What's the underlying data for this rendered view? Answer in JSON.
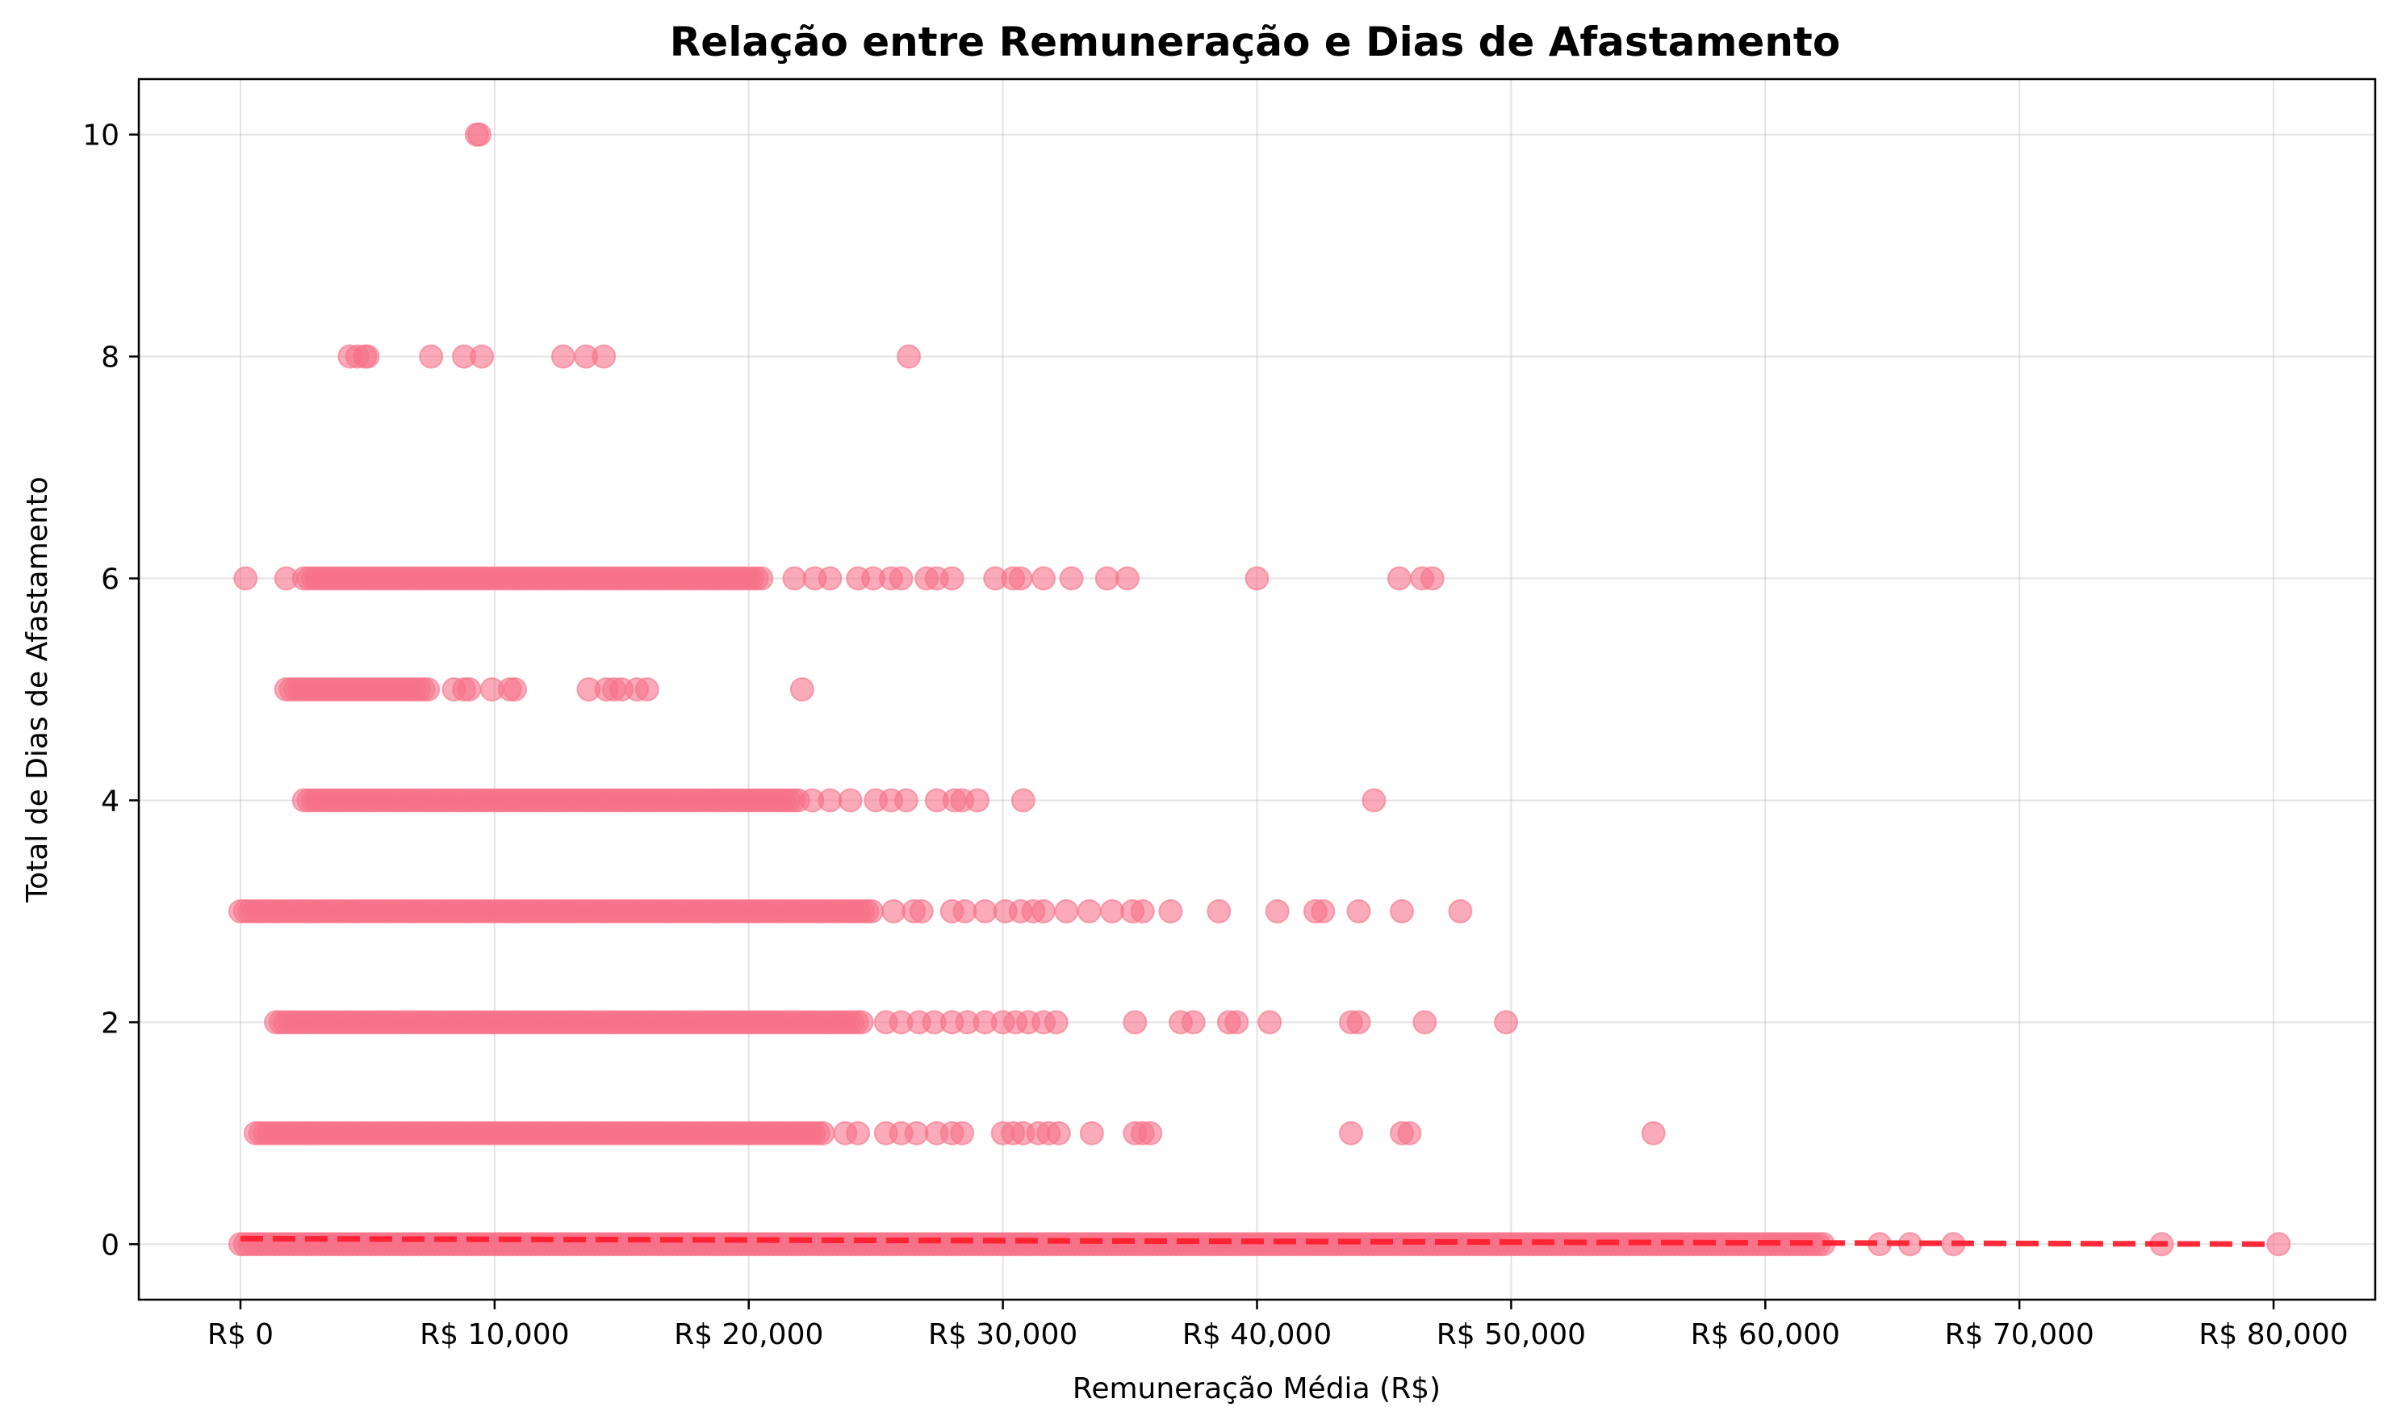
{
  "chart_data": {
    "type": "scatter",
    "title": "Relação entre Remuneração e Dias de Afastamento",
    "xlabel": "Remuneração Média (R$)",
    "ylabel": "Total de Dias de Afastamento",
    "xlim": [
      -4000,
      84000
    ],
    "ylim": [
      -0.5,
      10.5
    ],
    "grid": true,
    "x_ticks": [
      0,
      10000,
      20000,
      30000,
      40000,
      50000,
      60000,
      70000,
      80000
    ],
    "x_tick_labels": [
      "R$ 0",
      "R$ 10,000",
      "R$ 20,000",
      "R$ 30,000",
      "R$ 40,000",
      "R$ 50,000",
      "R$ 60,000",
      "R$ 70,000",
      "R$ 80,000"
    ],
    "y_ticks": [
      0,
      2,
      4,
      6,
      8,
      10
    ],
    "y_tick_labels": [
      "0",
      "2",
      "4",
      "6",
      "8",
      "10"
    ],
    "point_color": "#f77189",
    "trend_color": "#ff1f2e",
    "trend_line": {
      "x": [
        0,
        80000
      ],
      "y": [
        0.05,
        0.0
      ]
    },
    "dense_ranges": [
      {
        "y": 0,
        "x_start": 0,
        "x_end": 62300
      },
      {
        "y": 1,
        "x_start": 600,
        "x_end": 23000
      },
      {
        "y": 2,
        "x_start": 1400,
        "x_end": 24500
      },
      {
        "y": 3,
        "x_start": 0,
        "x_end": 25000
      },
      {
        "y": 4,
        "x_start": 2500,
        "x_end": 22000
      },
      {
        "y": 5,
        "x_start": 1800,
        "x_end": 7400
      },
      {
        "y": 6,
        "x_start": 2500,
        "x_end": 20500
      }
    ],
    "points": [
      [
        9300,
        10
      ],
      [
        9400,
        10
      ],
      [
        4300,
        8
      ],
      [
        4600,
        8
      ],
      [
        4900,
        8
      ],
      [
        5000,
        8
      ],
      [
        7500,
        8
      ],
      [
        8800,
        8
      ],
      [
        9500,
        8
      ],
      [
        12700,
        8
      ],
      [
        13600,
        8
      ],
      [
        14300,
        8
      ],
      [
        26300,
        8
      ],
      [
        200,
        6
      ],
      [
        1800,
        6
      ],
      [
        21800,
        6
      ],
      [
        22600,
        6
      ],
      [
        23200,
        6
      ],
      [
        24300,
        6
      ],
      [
        24900,
        6
      ],
      [
        25600,
        6
      ],
      [
        26000,
        6
      ],
      [
        27000,
        6
      ],
      [
        27400,
        6
      ],
      [
        28000,
        6
      ],
      [
        29700,
        6
      ],
      [
        30400,
        6
      ],
      [
        30700,
        6
      ],
      [
        31600,
        6
      ],
      [
        32700,
        6
      ],
      [
        34100,
        6
      ],
      [
        34900,
        6
      ],
      [
        40000,
        6
      ],
      [
        45600,
        6
      ],
      [
        46500,
        6
      ],
      [
        46900,
        6
      ],
      [
        8400,
        5
      ],
      [
        8800,
        5
      ],
      [
        9000,
        5
      ],
      [
        9900,
        5
      ],
      [
        10600,
        5
      ],
      [
        10800,
        5
      ],
      [
        13700,
        5
      ],
      [
        14400,
        5
      ],
      [
        14700,
        5
      ],
      [
        15000,
        5
      ],
      [
        15600,
        5
      ],
      [
        16000,
        5
      ],
      [
        22100,
        5
      ],
      [
        22500,
        4
      ],
      [
        23200,
        4
      ],
      [
        24000,
        4
      ],
      [
        25000,
        4
      ],
      [
        25600,
        4
      ],
      [
        26200,
        4
      ],
      [
        27400,
        4
      ],
      [
        28100,
        4
      ],
      [
        28400,
        4
      ],
      [
        29000,
        4
      ],
      [
        30800,
        4
      ],
      [
        44600,
        4
      ],
      [
        25700,
        3
      ],
      [
        26500,
        3
      ],
      [
        26800,
        3
      ],
      [
        28000,
        3
      ],
      [
        28500,
        3
      ],
      [
        29300,
        3
      ],
      [
        30100,
        3
      ],
      [
        30700,
        3
      ],
      [
        31200,
        3
      ],
      [
        31600,
        3
      ],
      [
        32500,
        3
      ],
      [
        33400,
        3
      ],
      [
        34300,
        3
      ],
      [
        35100,
        3
      ],
      [
        35500,
        3
      ],
      [
        36600,
        3
      ],
      [
        38500,
        3
      ],
      [
        40800,
        3
      ],
      [
        42300,
        3
      ],
      [
        42600,
        3
      ],
      [
        44000,
        3
      ],
      [
        45700,
        3
      ],
      [
        48000,
        3
      ],
      [
        25400,
        2
      ],
      [
        26000,
        2
      ],
      [
        26700,
        2
      ],
      [
        27300,
        2
      ],
      [
        28000,
        2
      ],
      [
        28600,
        2
      ],
      [
        29300,
        2
      ],
      [
        30000,
        2
      ],
      [
        30500,
        2
      ],
      [
        31000,
        2
      ],
      [
        31600,
        2
      ],
      [
        32100,
        2
      ],
      [
        35200,
        2
      ],
      [
        37000,
        2
      ],
      [
        37500,
        2
      ],
      [
        38900,
        2
      ],
      [
        39200,
        2
      ],
      [
        40500,
        2
      ],
      [
        43700,
        2
      ],
      [
        44000,
        2
      ],
      [
        46600,
        2
      ],
      [
        49800,
        2
      ],
      [
        23800,
        1
      ],
      [
        24300,
        1
      ],
      [
        25400,
        1
      ],
      [
        26000,
        1
      ],
      [
        26600,
        1
      ],
      [
        27400,
        1
      ],
      [
        28000,
        1
      ],
      [
        28400,
        1
      ],
      [
        30000,
        1
      ],
      [
        30400,
        1
      ],
      [
        30800,
        1
      ],
      [
        31400,
        1
      ],
      [
        31800,
        1
      ],
      [
        32200,
        1
      ],
      [
        33500,
        1
      ],
      [
        35200,
        1
      ],
      [
        35500,
        1
      ],
      [
        35800,
        1
      ],
      [
        43700,
        1
      ],
      [
        45700,
        1
      ],
      [
        46000,
        1
      ],
      [
        55600,
        1
      ],
      [
        64500,
        0
      ],
      [
        65700,
        0
      ],
      [
        67400,
        0
      ],
      [
        75600,
        0
      ],
      [
        80200,
        0
      ]
    ]
  }
}
